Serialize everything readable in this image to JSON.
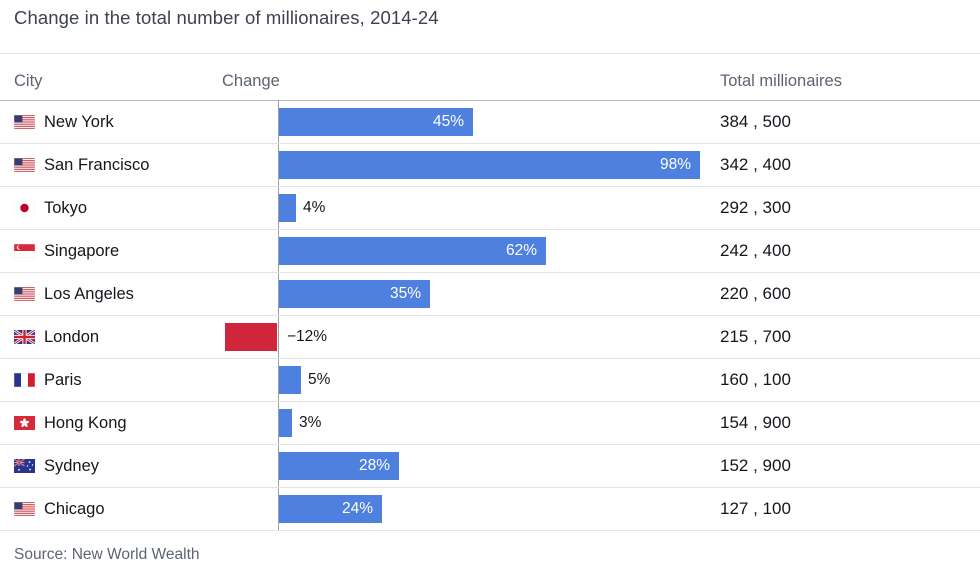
{
  "title": "Change in the total number of millionaires, 2014-24",
  "source": "Source: New World Wealth",
  "columns": {
    "city": "City",
    "change": "Change",
    "total": "Total millionaires"
  },
  "chart_data": {
    "type": "bar",
    "orientation": "horizontal",
    "value_unit": "percent",
    "x_range": [
      -12,
      98
    ],
    "grid": false,
    "colors": {
      "positive_bar": "#4e80e0",
      "negative_bar": "#d0253a"
    },
    "rows": [
      {
        "city": "New York",
        "flag": "us-flag-icon",
        "change_pct": 45,
        "change_label": "45%",
        "total": 384500,
        "total_label": "384 , 500"
      },
      {
        "city": "San Francisco",
        "flag": "us-flag-icon",
        "change_pct": 98,
        "change_label": "98%",
        "total": 342400,
        "total_label": "342 , 400"
      },
      {
        "city": "Tokyo",
        "flag": "japan-flag-icon",
        "change_pct": 4,
        "change_label": "4%",
        "total": 292300,
        "total_label": "292 , 300"
      },
      {
        "city": "Singapore",
        "flag": "singapore-flag-icon",
        "change_pct": 62,
        "change_label": "62%",
        "total": 242400,
        "total_label": "242 , 400"
      },
      {
        "city": "Los Angeles",
        "flag": "us-flag-icon",
        "change_pct": 35,
        "change_label": "35%",
        "total": 220600,
        "total_label": "220 , 600"
      },
      {
        "city": "London",
        "flag": "uk-flag-icon",
        "change_pct": -12,
        "change_label": "−12%",
        "total": 215700,
        "total_label": "215 , 700"
      },
      {
        "city": "Paris",
        "flag": "france-flag-icon",
        "change_pct": 5,
        "change_label": "5%",
        "total": 160100,
        "total_label": "160 , 100"
      },
      {
        "city": "Hong Kong",
        "flag": "hong-kong-flag-icon",
        "change_pct": 3,
        "change_label": "3%",
        "total": 154900,
        "total_label": "154 , 900"
      },
      {
        "city": "Sydney",
        "flag": "australia-flag-icon",
        "change_pct": 28,
        "change_label": "28%",
        "total": 152900,
        "total_label": "152 , 900"
      },
      {
        "city": "Chicago",
        "flag": "us-flag-icon",
        "change_pct": 24,
        "change_label": "24%",
        "total": 127100,
        "total_label": "127 , 100"
      }
    ]
  }
}
